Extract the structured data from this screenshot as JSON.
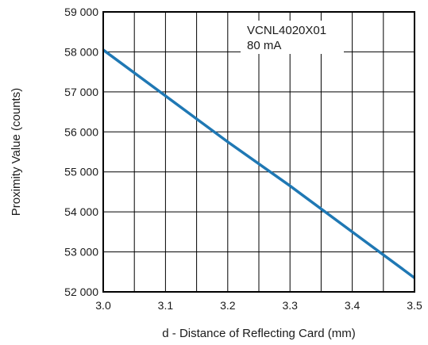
{
  "chart_data": {
    "type": "line",
    "title": "",
    "xlabel": "d - Distance of Reflecting Card (mm)",
    "ylabel": "Proximity Value (counts)",
    "xlim": [
      3.0,
      3.5
    ],
    "ylim": [
      52000,
      59000
    ],
    "x_ticks": [
      3.0,
      3.1,
      3.2,
      3.3,
      3.4,
      3.5
    ],
    "x_tick_labels": [
      "3.0",
      "3.1",
      "3.2",
      "3.3",
      "3.4",
      "3.5"
    ],
    "y_ticks": [
      52000,
      53000,
      54000,
      55000,
      56000,
      57000,
      58000,
      59000
    ],
    "y_tick_labels": [
      "52 000",
      "53 000",
      "54 000",
      "55 000",
      "56 000",
      "57 000",
      "58 000",
      "59 000"
    ],
    "x_minor_step": 0.05,
    "grid": true,
    "annotation": [
      "VCNL4020X01",
      "80 mA"
    ],
    "line_color": "#1f78b4",
    "series": [
      {
        "x": [
          3.0,
          3.1,
          3.2,
          3.3,
          3.4,
          3.5
        ],
        "y": [
          58050,
          56900,
          55750,
          54650,
          53500,
          52350
        ]
      }
    ]
  }
}
